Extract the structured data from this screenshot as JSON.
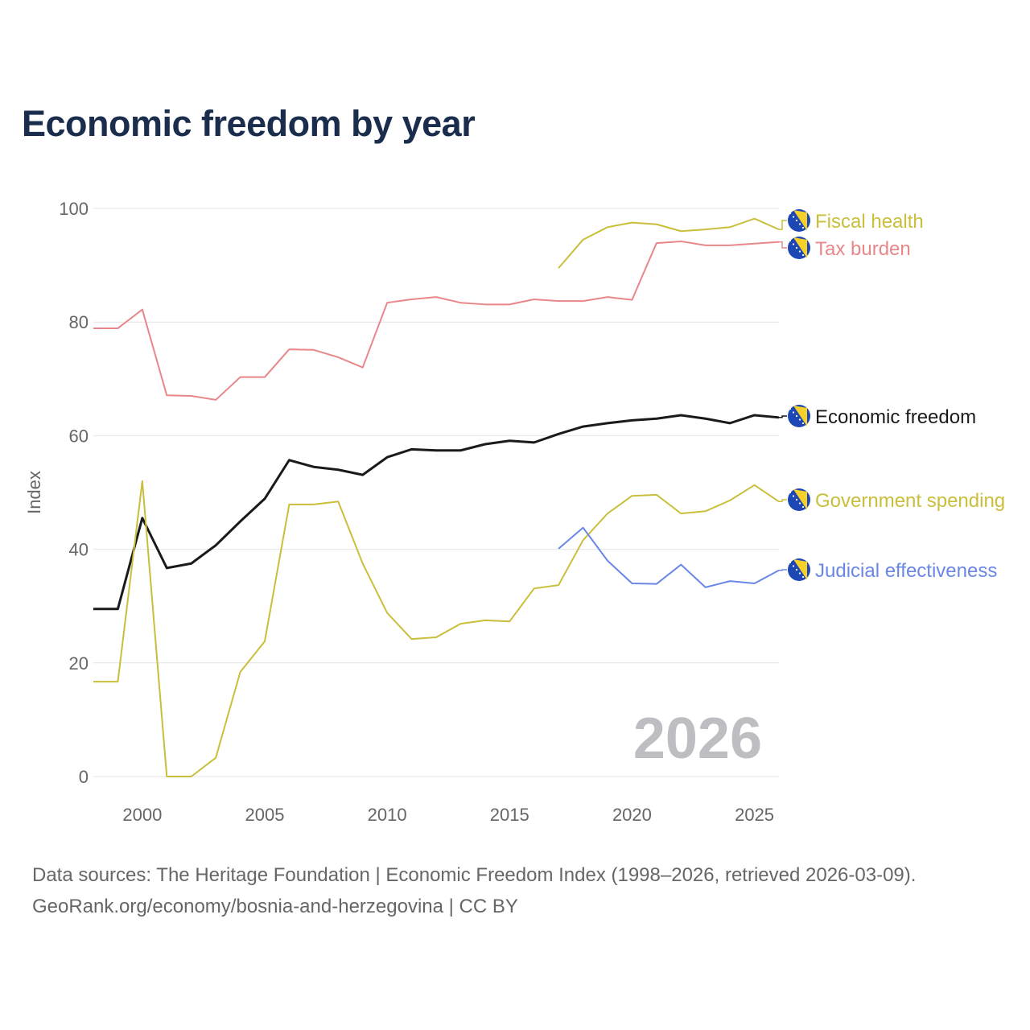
{
  "chart_data": {
    "type": "line",
    "title": "Economic freedom by year",
    "xlabel": "",
    "ylabel": "Index",
    "ylim": [
      0,
      100
    ],
    "xlim": [
      1998,
      2026
    ],
    "yticks": [
      "0",
      "20",
      "40",
      "60",
      "80",
      "100"
    ],
    "xticks": [
      "2000",
      "2005",
      "2010",
      "2015",
      "2020",
      "2025"
    ],
    "grid": true,
    "legend": "direct labels at right end of lines",
    "watermark_year": "2026",
    "series": [
      {
        "name": "Fiscal health",
        "color": "#c9bf3b",
        "x": [
          2017,
          2018,
          2019,
          2020,
          2021,
          2022,
          2023,
          2024,
          2025,
          2026
        ],
        "values": [
          89.5,
          94.5,
          96.7,
          97.5,
          97.2,
          96.0,
          96.3,
          96.7,
          98.2,
          96.3
        ]
      },
      {
        "name": "Tax burden",
        "color": "#e8878a",
        "x": [
          1998,
          1999,
          2000,
          2001,
          2002,
          2003,
          2004,
          2005,
          2006,
          2007,
          2008,
          2009,
          2010,
          2011,
          2012,
          2013,
          2014,
          2015,
          2016,
          2017,
          2018,
          2019,
          2020,
          2021,
          2022,
          2023,
          2024,
          2025,
          2026
        ],
        "values": [
          78.9,
          78.9,
          82.2,
          67.1,
          67.0,
          66.3,
          70.3,
          70.3,
          75.2,
          75.1,
          73.8,
          72.0,
          83.4,
          84.0,
          84.4,
          83.4,
          83.1,
          83.1,
          84.0,
          83.7,
          83.7,
          84.4,
          83.9,
          93.9,
          94.2,
          93.5,
          93.5,
          93.8,
          94.1
        ]
      },
      {
        "name": "Economic freedom",
        "color": "#1a1a1a",
        "x": [
          1998,
          1999,
          2000,
          2001,
          2002,
          2003,
          2004,
          2005,
          2006,
          2007,
          2008,
          2009,
          2010,
          2011,
          2012,
          2013,
          2014,
          2015,
          2016,
          2017,
          2018,
          2019,
          2020,
          2021,
          2022,
          2023,
          2024,
          2025,
          2026
        ],
        "values": [
          29.5,
          29.5,
          45.5,
          36.7,
          37.5,
          40.7,
          44.9,
          48.9,
          55.7,
          54.5,
          54.0,
          53.1,
          56.2,
          57.6,
          57.4,
          57.4,
          58.5,
          59.1,
          58.8,
          60.3,
          61.6,
          62.2,
          62.7,
          63.0,
          63.6,
          63.0,
          62.2,
          63.6,
          63.2
        ]
      },
      {
        "name": "Government spending",
        "color": "#c9bf3b",
        "x": [
          1998,
          1999,
          2000,
          2001,
          2002,
          2003,
          2004,
          2005,
          2006,
          2007,
          2008,
          2009,
          2010,
          2011,
          2012,
          2013,
          2014,
          2015,
          2016,
          2017,
          2018,
          2019,
          2020,
          2021,
          2022,
          2023,
          2024,
          2025,
          2026
        ],
        "values": [
          16.7,
          16.7,
          52.0,
          0,
          0,
          3.3,
          18.4,
          23.8,
          47.9,
          47.9,
          48.4,
          37.5,
          28.8,
          24.2,
          24.5,
          26.9,
          27.5,
          27.3,
          33.1,
          33.7,
          41.6,
          46.3,
          49.4,
          49.6,
          46.3,
          46.7,
          48.6,
          51.3,
          48.4
        ]
      },
      {
        "name": "Judicial effectiveness",
        "color": "#6a87e6",
        "x": [
          2017,
          2018,
          2019,
          2020,
          2021,
          2022,
          2023,
          2024,
          2025,
          2026
        ],
        "values": [
          40.1,
          43.8,
          38.0,
          34.0,
          33.9,
          37.3,
          33.3,
          34.4,
          34.0,
          36.3
        ]
      }
    ]
  },
  "footer": {
    "line1": "Data sources: The Heritage Foundation | Economic Freedom Index (1998–2026, retrieved 2026-03-09).",
    "line2": "GeoRank.org/economy/bosnia-and-herzegovina | CC BY"
  }
}
